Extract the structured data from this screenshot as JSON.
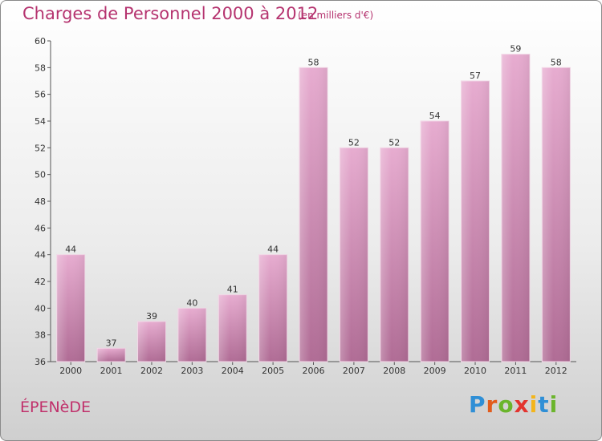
{
  "title": "Charges de Personnel 2000 à 2012",
  "unit_note": "(en milliers d'€)",
  "commune": "ÉPENèDE",
  "brand": {
    "letters": [
      "P",
      "r",
      "o",
      "x",
      "i",
      "t",
      "i"
    ],
    "colors": [
      "#2f8fd6",
      "#e25c1c",
      "#6bb52c",
      "#e3342f",
      "#f3b51b",
      "#2f8fd6",
      "#6bb52c"
    ]
  },
  "colors": {
    "bar": "#d98fba",
    "bar_dark": "#b06c95",
    "title": "#b5336f"
  },
  "chart_data": {
    "type": "bar",
    "title": "Charges de Personnel 2000 à 2012",
    "subtitle": "(en milliers d'€)",
    "categories": [
      "2000",
      "2001",
      "2002",
      "2003",
      "2004",
      "2005",
      "2006",
      "2007",
      "2008",
      "2009",
      "2010",
      "2011",
      "2012"
    ],
    "values": [
      44,
      37,
      39,
      40,
      41,
      44,
      58,
      52,
      52,
      54,
      57,
      59,
      58
    ],
    "ylim": [
      36,
      60
    ],
    "yticks": [
      36,
      38,
      40,
      42,
      44,
      46,
      48,
      50,
      52,
      54,
      56,
      58,
      60
    ],
    "grid": false,
    "legend": "none"
  }
}
